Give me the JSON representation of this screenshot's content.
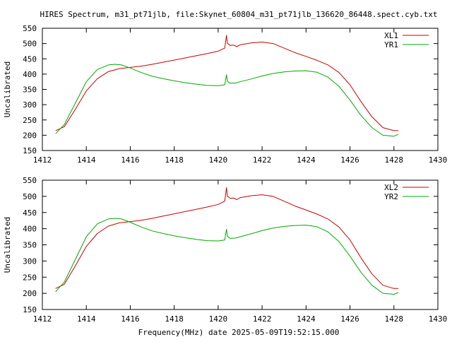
{
  "page": {
    "title": "HIRES Spectrum, m31_pt71jlb, file:Skynet_60804_m31_pt71jlb_136620_86448.spect.cyb.txt",
    "footer_label": "Frequency(MHz) date 2025-05-09T19:52:15.000"
  },
  "colors": {
    "red": "#cc0000",
    "green": "#00aa00",
    "axis": "#000000"
  },
  "chart_data": [
    {
      "type": "line",
      "ylabel": "Uncalibrated",
      "xlim": [
        1412,
        1430
      ],
      "ylim": [
        150,
        550
      ],
      "x_ticks": [
        1412,
        1414,
        1416,
        1418,
        1420,
        1422,
        1424,
        1426,
        1428,
        1430
      ],
      "y_ticks": [
        150,
        200,
        250,
        300,
        350,
        400,
        450,
        500,
        550
      ],
      "legend_position": "top-right",
      "grid": false,
      "series": [
        {
          "name": "XL1",
          "color": "#cc0000",
          "x": [
            1412.6,
            1413.0,
            1413.5,
            1414.0,
            1414.5,
            1415.0,
            1415.5,
            1416.0,
            1416.5,
            1417.0,
            1417.5,
            1418.0,
            1418.5,
            1419.0,
            1419.5,
            1420.0,
            1420.3,
            1420.38,
            1420.42,
            1420.48,
            1420.55,
            1420.7,
            1420.85,
            1421.0,
            1421.5,
            1422.0,
            1422.5,
            1423.0,
            1423.5,
            1424.0,
            1424.5,
            1425.0,
            1425.5,
            1426.0,
            1426.5,
            1427.0,
            1427.5,
            1428.0,
            1428.2
          ],
          "y": [
            215,
            228,
            285,
            345,
            385,
            408,
            418,
            422,
            426,
            432,
            439,
            446,
            453,
            460,
            467,
            475,
            485,
            527,
            500,
            498,
            494,
            495,
            490,
            496,
            502,
            505,
            500,
            485,
            470,
            458,
            445,
            430,
            405,
            365,
            310,
            260,
            225,
            215,
            215
          ]
        },
        {
          "name": "YR1",
          "color": "#00aa00",
          "x": [
            1412.6,
            1413.0,
            1413.5,
            1414.0,
            1414.5,
            1415.0,
            1415.3,
            1415.6,
            1416.0,
            1416.5,
            1417.0,
            1417.5,
            1418.0,
            1418.5,
            1419.0,
            1419.5,
            1420.0,
            1420.3,
            1420.38,
            1420.42,
            1420.48,
            1420.55,
            1420.8,
            1421.0,
            1421.5,
            1422.0,
            1422.5,
            1423.0,
            1423.5,
            1424.0,
            1424.5,
            1425.0,
            1425.5,
            1426.0,
            1426.5,
            1427.0,
            1427.5,
            1428.0,
            1428.2
          ],
          "y": [
            205,
            235,
            305,
            375,
            415,
            430,
            432,
            430,
            420,
            405,
            393,
            385,
            378,
            372,
            367,
            363,
            362,
            365,
            398,
            377,
            373,
            370,
            371,
            375,
            384,
            394,
            402,
            407,
            410,
            411,
            406,
            390,
            360,
            315,
            265,
            225,
            200,
            197,
            203
          ]
        }
      ]
    },
    {
      "type": "line",
      "ylabel": "Uncalibrated",
      "xlim": [
        1412,
        1430
      ],
      "ylim": [
        150,
        550
      ],
      "x_ticks": [
        1412,
        1414,
        1416,
        1418,
        1420,
        1422,
        1424,
        1426,
        1428,
        1430
      ],
      "y_ticks": [
        150,
        200,
        250,
        300,
        350,
        400,
        450,
        500,
        550
      ],
      "legend_position": "top-right",
      "grid": false,
      "series": [
        {
          "name": "XL2",
          "color": "#cc0000",
          "x": [
            1412.6,
            1413.0,
            1413.5,
            1414.0,
            1414.5,
            1415.0,
            1415.5,
            1416.0,
            1416.5,
            1417.0,
            1417.5,
            1418.0,
            1418.5,
            1419.0,
            1419.5,
            1420.0,
            1420.3,
            1420.38,
            1420.42,
            1420.48,
            1420.55,
            1420.7,
            1420.85,
            1421.0,
            1421.5,
            1422.0,
            1422.5,
            1423.0,
            1423.5,
            1424.0,
            1424.5,
            1425.0,
            1425.5,
            1426.0,
            1426.5,
            1427.0,
            1427.5,
            1428.0,
            1428.2
          ],
          "y": [
            215,
            228,
            285,
            345,
            385,
            408,
            418,
            422,
            426,
            432,
            439,
            446,
            453,
            460,
            467,
            475,
            485,
            527,
            500,
            498,
            494,
            495,
            490,
            496,
            502,
            505,
            500,
            485,
            470,
            458,
            445,
            430,
            405,
            365,
            310,
            260,
            225,
            215,
            215
          ]
        },
        {
          "name": "YR2",
          "color": "#00aa00",
          "x": [
            1412.6,
            1413.0,
            1413.5,
            1414.0,
            1414.5,
            1415.0,
            1415.3,
            1415.6,
            1416.0,
            1416.5,
            1417.0,
            1417.5,
            1418.0,
            1418.5,
            1419.0,
            1419.5,
            1420.0,
            1420.3,
            1420.38,
            1420.42,
            1420.48,
            1420.55,
            1420.8,
            1421.0,
            1421.5,
            1422.0,
            1422.5,
            1423.0,
            1423.5,
            1424.0,
            1424.5,
            1425.0,
            1425.5,
            1426.0,
            1426.5,
            1427.0,
            1427.5,
            1428.0,
            1428.2
          ],
          "y": [
            205,
            235,
            305,
            375,
            415,
            430,
            432,
            430,
            420,
            405,
            393,
            385,
            378,
            372,
            367,
            363,
            362,
            365,
            398,
            377,
            373,
            370,
            371,
            375,
            384,
            394,
            402,
            407,
            410,
            411,
            406,
            390,
            360,
            315,
            265,
            225,
            200,
            197,
            203
          ]
        }
      ]
    }
  ]
}
